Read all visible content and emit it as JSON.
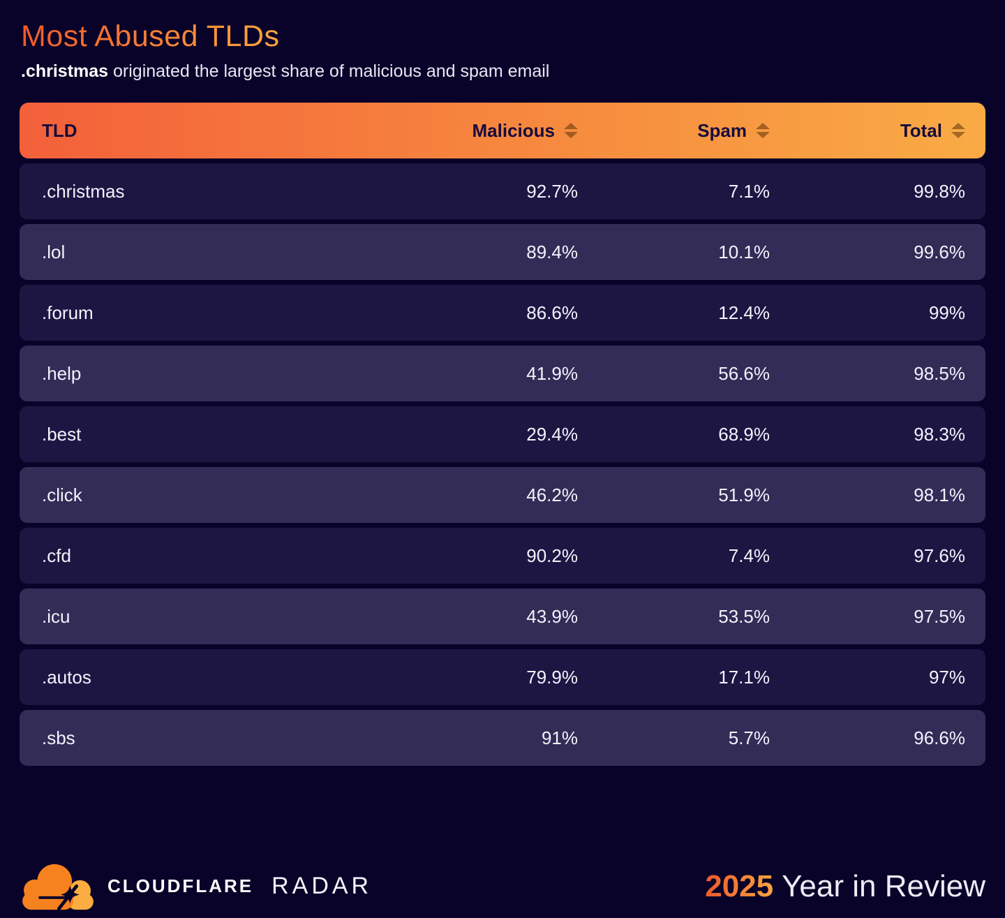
{
  "header": {
    "title": "Most Abused TLDs",
    "subtitle_bold": ".christmas",
    "subtitle_rest": " originated the largest share of malicious and spam email"
  },
  "table": {
    "columns": [
      {
        "label": "TLD",
        "sortable": false
      },
      {
        "label": "Malicious",
        "sortable": true
      },
      {
        "label": "Spam",
        "sortable": true
      },
      {
        "label": "Total",
        "sortable": true
      }
    ],
    "rows": [
      {
        "tld": ".christmas",
        "malicious": "92.7%",
        "spam": "7.1%",
        "total": "99.8%"
      },
      {
        "tld": ".lol",
        "malicious": "89.4%",
        "spam": "10.1%",
        "total": "99.6%"
      },
      {
        "tld": ".forum",
        "malicious": "86.6%",
        "spam": "12.4%",
        "total": "99%"
      },
      {
        "tld": ".help",
        "malicious": "41.9%",
        "spam": "56.6%",
        "total": "98.5%"
      },
      {
        "tld": ".best",
        "malicious": "29.4%",
        "spam": "68.9%",
        "total": "98.3%"
      },
      {
        "tld": ".click",
        "malicious": "46.2%",
        "spam": "51.9%",
        "total": "98.1%"
      },
      {
        "tld": ".cfd",
        "malicious": "90.2%",
        "spam": "7.4%",
        "total": "97.6%"
      },
      {
        "tld": ".icu",
        "malicious": "43.9%",
        "spam": "53.5%",
        "total": "97.5%"
      },
      {
        "tld": ".autos",
        "malicious": "79.9%",
        "spam": "17.1%",
        "total": "97%"
      },
      {
        "tld": ".sbs",
        "malicious": "91%",
        "spam": "5.7%",
        "total": "96.6%"
      }
    ]
  },
  "footer": {
    "brand": "CLOUDFLARE",
    "product": "RADAR",
    "year": "2025",
    "title": "Year in Review"
  },
  "colors": {
    "background": "#0a0329",
    "row_dark": "#1d1643",
    "row_light": "#322c57",
    "header_gradient_start": "#f3603a",
    "header_gradient_end": "#f9ab45",
    "title_gradient_start": "#ef5a2b",
    "title_gradient_end": "#f9a53e",
    "header_text": "#160c3c",
    "body_text": "#f4f2fb",
    "logo_orange": "#f6821f",
    "logo_light_orange": "#fbad41"
  },
  "icons": {
    "sort": "sort-arrows-icon",
    "logo": "cloudflare-logo-icon"
  },
  "chart_data": {
    "type": "table",
    "title": "Most Abused TLDs",
    "subtitle": ".christmas originated the largest share of malicious and spam email",
    "columns": [
      "TLD",
      "Malicious",
      "Spam",
      "Total"
    ],
    "categories": [
      ".christmas",
      ".lol",
      ".forum",
      ".help",
      ".best",
      ".click",
      ".cfd",
      ".icu",
      ".autos",
      ".sbs"
    ],
    "series": [
      {
        "name": "Malicious",
        "values": [
          92.7,
          89.4,
          86.6,
          41.9,
          29.4,
          46.2,
          90.2,
          43.9,
          79.9,
          91.0
        ]
      },
      {
        "name": "Spam",
        "values": [
          7.1,
          10.1,
          12.4,
          56.6,
          68.9,
          51.9,
          7.4,
          53.5,
          17.1,
          5.7
        ]
      },
      {
        "name": "Total",
        "values": [
          99.8,
          99.6,
          99.0,
          98.5,
          98.3,
          98.1,
          97.6,
          97.5,
          97.0,
          96.6
        ]
      }
    ],
    "unit": "%",
    "sort": "Total descending",
    "legend_position": "none",
    "grid": false
  }
}
